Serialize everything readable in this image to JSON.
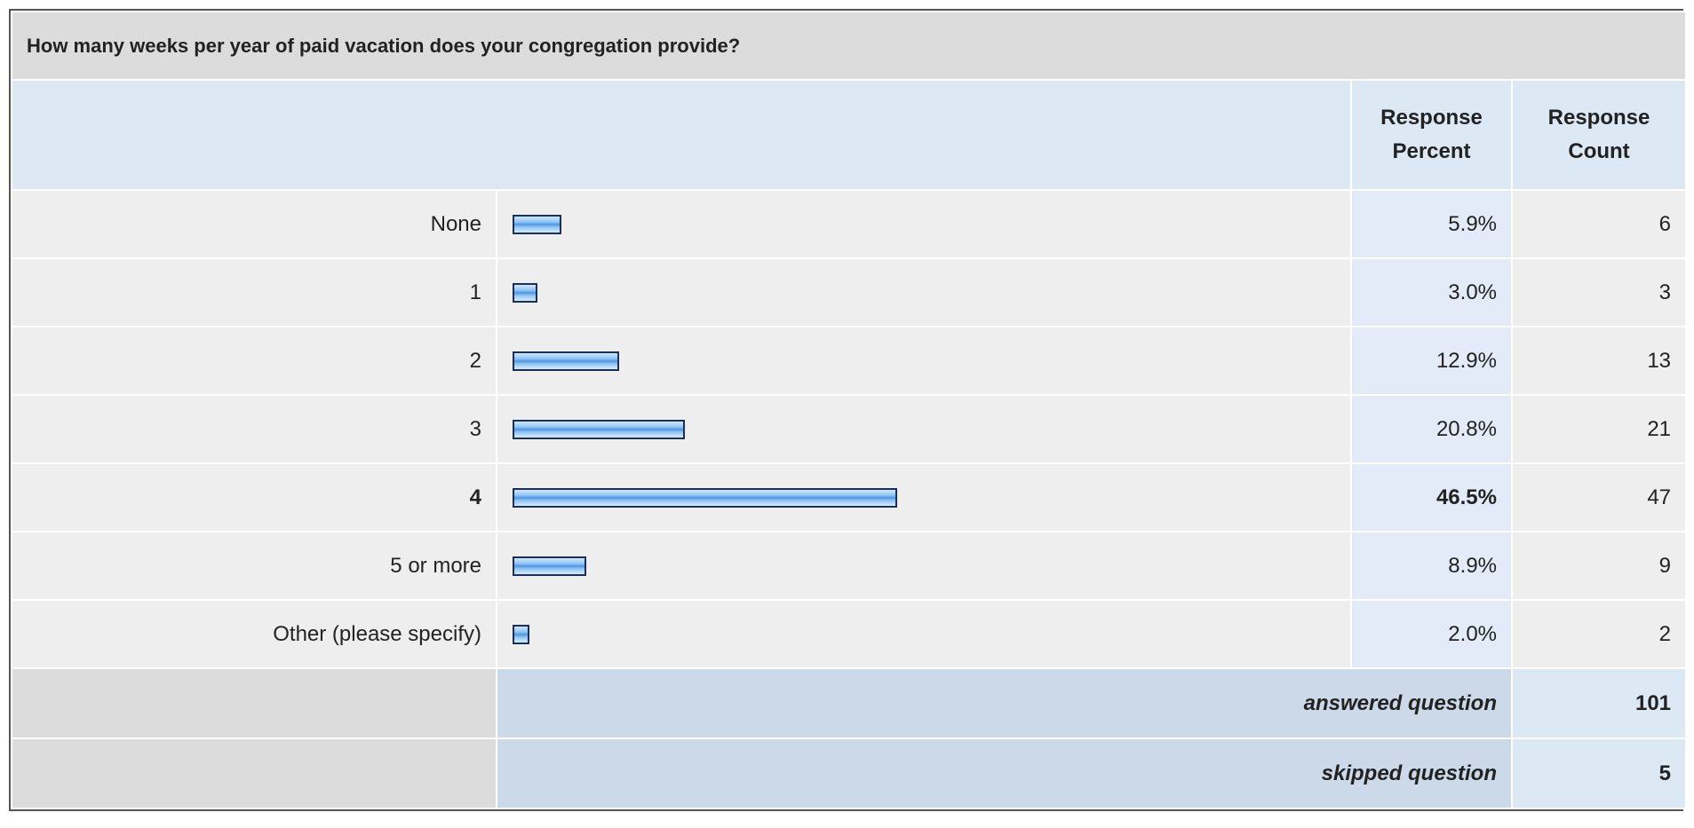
{
  "title": "How many weeks per year of paid vacation does your congregation provide?",
  "header": {
    "percent": [
      "Response",
      "Percent"
    ],
    "count": [
      "Response",
      "Count"
    ]
  },
  "rows": [
    {
      "label": "None",
      "percent": 5.9,
      "percent_label": "5.9%",
      "count": 6
    },
    {
      "label": "1",
      "percent": 3.0,
      "percent_label": "3.0%",
      "count": 3
    },
    {
      "label": "2",
      "percent": 12.9,
      "percent_label": "12.9%",
      "count": 13
    },
    {
      "label": "3",
      "percent": 20.8,
      "percent_label": "20.8%",
      "count": 21
    },
    {
      "label": "4",
      "percent": 46.5,
      "percent_label": "46.5%",
      "count": 47
    },
    {
      "label": "5 or more",
      "percent": 8.9,
      "percent_label": "8.9%",
      "count": 9
    },
    {
      "label": "Other (please specify)",
      "percent": 2.0,
      "percent_label": "2.0%",
      "count": 2
    }
  ],
  "summary": [
    {
      "label": "answered question",
      "count": 101
    },
    {
      "label": "skipped question",
      "count": 5
    }
  ]
}
